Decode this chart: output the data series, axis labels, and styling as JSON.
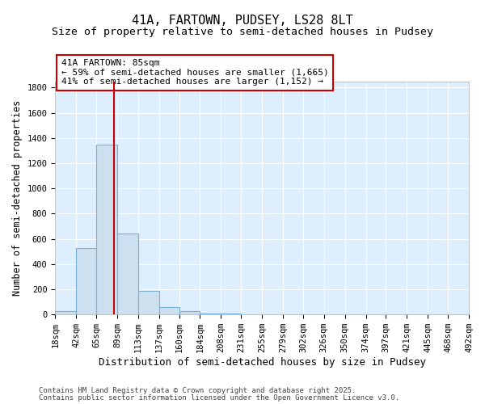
{
  "title": "41A, FARTOWN, PUDSEY, LS28 8LT",
  "subtitle": "Size of property relative to semi-detached houses in Pudsey",
  "xlabel": "Distribution of semi-detached houses by size in Pudsey",
  "ylabel": "Number of semi-detached properties",
  "bins": [
    18,
    42,
    65,
    89,
    113,
    137,
    160,
    184,
    208,
    231,
    255,
    279,
    302,
    326,
    350,
    374,
    397,
    421,
    445,
    468,
    492
  ],
  "counts": [
    30,
    530,
    1350,
    640,
    190,
    60,
    30,
    10,
    5,
    0,
    0,
    0,
    0,
    0,
    0,
    0,
    0,
    0,
    0,
    0
  ],
  "bar_color": "#cce0f0",
  "bar_edge_color": "#7ab0d4",
  "bar_edge_width": 0.8,
  "red_line_x": 85,
  "red_line_color": "#cc0000",
  "annotation_line1": "41A FARTOWN: 85sqm",
  "annotation_line2": "← 59% of semi-detached houses are smaller (1,665)",
  "annotation_line3": "41% of semi-detached houses are larger (1,152) →",
  "annotation_box_color": "#ffffff",
  "annotation_box_edge": "#cc0000",
  "ylim": [
    0,
    1850
  ],
  "yticks": [
    0,
    200,
    400,
    600,
    800,
    1000,
    1200,
    1400,
    1600,
    1800
  ],
  "footer1": "Contains HM Land Registry data © Crown copyright and database right 2025.",
  "footer2": "Contains public sector information licensed under the Open Government Licence v3.0.",
  "bg_color": "#ffffff",
  "plot_bg_color": "#ddeeff",
  "grid_color": "#ffffff",
  "title_fontsize": 11,
  "subtitle_fontsize": 9.5,
  "xlabel_fontsize": 9,
  "ylabel_fontsize": 8.5,
  "tick_fontsize": 7.5,
  "annotation_fontsize": 8,
  "footer_fontsize": 6.5
}
